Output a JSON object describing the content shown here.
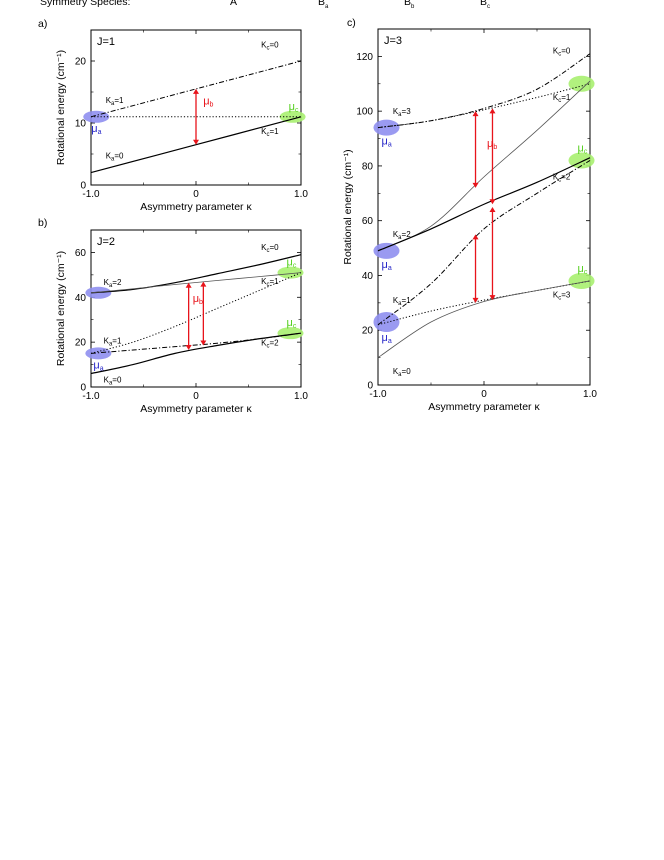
{
  "header": {
    "text": "Symmetry Species:",
    "species": [
      "A",
      "B",
      "B",
      "B"
    ],
    "species_subs": [
      "",
      "a",
      "b",
      "c"
    ]
  },
  "chart_data": [
    {
      "type": "line",
      "panel_label": "a)",
      "title": "J=1",
      "xlabel": "Asymmetry parameter κ",
      "ylabel": "Rotational energy (cm⁻¹)",
      "xlim": [
        -1.0,
        1.0
      ],
      "ylim": [
        0,
        25
      ],
      "xticks": [
        "-1.0",
        "0",
        "1.0"
      ],
      "yticks": [
        0,
        10,
        20
      ],
      "series": [
        {
          "name": "Ka=1,Kc=0",
          "style": "dashdot",
          "x": [
            -1.0,
            0,
            1.0
          ],
          "y": [
            11,
            15.5,
            20
          ]
        },
        {
          "name": "Ka=1,Kc=1",
          "style": "dotted",
          "x": [
            -1.0,
            0,
            1.0
          ],
          "y": [
            11,
            11,
            11
          ]
        },
        {
          "name": "Ka=0,Kc=1",
          "style": "solid",
          "x": [
            -1.0,
            0,
            1.0
          ],
          "y": [
            2,
            6.5,
            11
          ]
        }
      ],
      "transitions": [
        {
          "x": 0,
          "y1": 6.5,
          "y2": 15.5
        }
      ],
      "blobs": [
        {
          "color": "#8f8fef",
          "x": -0.95,
          "y": 11,
          "label": "μ",
          "sub": "a"
        },
        {
          "color": "#a8f070",
          "x": 0.92,
          "y": 11,
          "label": "μ",
          "sub": "c"
        }
      ],
      "mu_b_label": {
        "x": 0.04,
        "y": 13,
        "text": "μ",
        "sub": "b"
      },
      "level_labels": [
        {
          "text": "K",
          "sub": "a",
          "rest": "=1",
          "x": -0.86,
          "y": 13.2
        },
        {
          "text": "K",
          "sub": "a",
          "rest": "=0",
          "x": -0.86,
          "y": 4.3
        },
        {
          "text": "K",
          "sub": "c",
          "rest": "=0",
          "x": 0.62,
          "y": 22.2
        },
        {
          "text": "K",
          "sub": "c",
          "rest": "=1",
          "x": 0.62,
          "y": 8.2
        }
      ]
    },
    {
      "type": "line",
      "panel_label": "b)",
      "title": "J=2",
      "xlabel": "Asymmetry parameter κ",
      "ylabel": "Rotational energy (cm⁻¹)",
      "xlim": [
        -1.0,
        1.0
      ],
      "ylim": [
        0,
        70
      ],
      "xticks": [
        "-1.0",
        "0",
        "1.0"
      ],
      "yticks": [
        0,
        20,
        40,
        60
      ],
      "series": [
        {
          "name": "Ka=2,Kc=0",
          "style": "solid",
          "x": [
            -1.0,
            -0.6,
            -0.2,
            0.2,
            0.6,
            1.0
          ],
          "y": [
            42,
            43.5,
            46.5,
            50.5,
            54.5,
            59
          ]
        },
        {
          "name": "Ka=2,Kc=1",
          "style": "solid-thin",
          "x": [
            -1.0,
            -0.6,
            -0.2,
            0.2,
            0.6,
            1.0
          ],
          "y": [
            42,
            43.8,
            45.7,
            47.5,
            49.2,
            51
          ]
        },
        {
          "name": "Ka=1,Kc=1",
          "style": "dotted",
          "x": [
            -1.0,
            -0.6,
            -0.2,
            0.2,
            0.6,
            1.0
          ],
          "y": [
            15,
            20,
            27,
            35,
            43,
            51
          ]
        },
        {
          "name": "Ka=1,Kc=2",
          "style": "dashdot",
          "x": [
            -1.0,
            -0.6,
            -0.2,
            0.2,
            0.6,
            1.0
          ],
          "y": [
            15,
            16.5,
            18,
            19.5,
            21.5,
            24
          ]
        },
        {
          "name": "Ka=0,Kc=2",
          "style": "solid",
          "x": [
            -1.0,
            -0.6,
            -0.2,
            0.2,
            0.6,
            1.0
          ],
          "y": [
            6,
            10,
            15,
            18.5,
            21.5,
            24
          ]
        }
      ],
      "transitions": [
        {
          "x": -0.07,
          "y1": 16.5,
          "y2": 46.5
        },
        {
          "x": 0.07,
          "y1": 18.5,
          "y2": 47
        }
      ],
      "blobs": [
        {
          "color": "#8f8fef",
          "x": -0.93,
          "y": 42,
          "label": "",
          "sub": ""
        },
        {
          "color": "#8f8fef",
          "x": -0.93,
          "y": 15,
          "label": "μ",
          "sub": "a"
        },
        {
          "color": "#a8f070",
          "x": 0.9,
          "y": 51,
          "label": "μ",
          "sub": "c"
        },
        {
          "color": "#a8f070",
          "x": 0.9,
          "y": 24,
          "label": "μ",
          "sub": "c"
        }
      ],
      "mu_b_label": {
        "x": -0.06,
        "y": 38,
        "text": "μ",
        "sub": "b"
      },
      "level_labels": [
        {
          "text": "K",
          "sub": "a",
          "rest": "=2",
          "x": -0.88,
          "y": 45.5
        },
        {
          "text": "K",
          "sub": "a",
          "rest": "=1",
          "x": -0.88,
          "y": 19.5
        },
        {
          "text": "K",
          "sub": "a",
          "rest": "=0",
          "x": -0.88,
          "y": 2
        },
        {
          "text": "K",
          "sub": "c",
          "rest": "=0",
          "x": 0.62,
          "y": 61
        },
        {
          "text": "K",
          "sub": "c",
          "rest": "=1",
          "x": 0.62,
          "y": 46
        },
        {
          "text": "K",
          "sub": "c",
          "rest": "=2",
          "x": 0.62,
          "y": 18.5
        }
      ]
    },
    {
      "type": "line",
      "panel_label": "c)",
      "title": "J=3",
      "xlabel": "Asymmetry parameter κ",
      "ylabel": "Rotational energy (cm⁻¹)",
      "xlim": [
        -1.0,
        1.0
      ],
      "ylim": [
        0,
        130
      ],
      "xticks": [
        "-1.0",
        "0",
        "1.0"
      ],
      "yticks": [
        0,
        20,
        40,
        60,
        80,
        100,
        120
      ],
      "series": [
        {
          "name": "Ka=3,Kc=0",
          "style": "dashdot",
          "x": [
            -1.0,
            -0.5,
            0,
            0.5,
            1.0
          ],
          "y": [
            94,
            96.5,
            101,
            108,
            121
          ]
        },
        {
          "name": "Ka=3,Kc=1",
          "style": "dotted",
          "x": [
            -1.0,
            -0.5,
            0,
            0.5,
            1.0
          ],
          "y": [
            94,
            96.5,
            100.5,
            105,
            110
          ]
        },
        {
          "name": "Ka=2,Kc=1",
          "style": "solid-thin",
          "x": [
            -1.0,
            -0.5,
            0,
            0.5,
            1.0
          ],
          "y": [
            49,
            58,
            76,
            93,
            111
          ]
        },
        {
          "name": "Ka=2,Kc=2",
          "style": "solid",
          "x": [
            -1.0,
            -0.5,
            0,
            0.5,
            1.0
          ],
          "y": [
            49,
            57,
            66,
            74,
            83
          ]
        },
        {
          "name": "Ka=1,Kc=2",
          "style": "dashdot",
          "x": [
            -1.0,
            -0.5,
            0,
            0.5,
            1.0
          ],
          "y": [
            22,
            37,
            57,
            70,
            82
          ]
        },
        {
          "name": "Ka=1,Kc=3",
          "style": "dotted",
          "x": [
            -1.0,
            -0.5,
            0,
            0.5,
            1.0
          ],
          "y": [
            22,
            27,
            31,
            34.5,
            38
          ]
        },
        {
          "name": "Ka=0,Kc=3",
          "style": "solid-thin",
          "x": [
            -1.0,
            -0.5,
            0,
            0.5,
            1.0
          ],
          "y": [
            10,
            23,
            30.5,
            34.5,
            38
          ]
        }
      ],
      "transitions": [
        {
          "x": -0.08,
          "y1": 72,
          "y2": 100
        },
        {
          "x": 0.08,
          "y1": 66,
          "y2": 101
        },
        {
          "x": -0.08,
          "y1": 30,
          "y2": 55
        },
        {
          "x": 0.08,
          "y1": 31,
          "y2": 65
        }
      ],
      "blobs": [
        {
          "color": "#8f8fef",
          "x": -0.92,
          "y": 94,
          "label": "μ",
          "sub": "a"
        },
        {
          "color": "#8f8fef",
          "x": -0.92,
          "y": 49,
          "label": "μ",
          "sub": "a"
        },
        {
          "color": "#8f8fef",
          "x": -0.92,
          "y": 23,
          "label": "μ",
          "sub": "a"
        },
        {
          "color": "#a8f070",
          "x": 0.92,
          "y": 110,
          "label": "",
          "sub": ""
        },
        {
          "color": "#a8f070",
          "x": 0.92,
          "y": 82,
          "label": "μ",
          "sub": "c"
        },
        {
          "color": "#a8f070",
          "x": 0.92,
          "y": 38,
          "label": "μ",
          "sub": "c"
        }
      ],
      "mu_b_label": {
        "x": 0.0,
        "y": 87,
        "text": "μ",
        "sub": "b"
      },
      "level_labels": [
        {
          "text": "K",
          "sub": "a",
          "rest": "=3",
          "x": -0.86,
          "y": 99
        },
        {
          "text": "K",
          "sub": "a",
          "rest": "=2",
          "x": -0.86,
          "y": 54
        },
        {
          "text": "K",
          "sub": "a",
          "rest": "=1",
          "x": -0.86,
          "y": 30
        },
        {
          "text": "K",
          "sub": "a",
          "rest": "=0",
          "x": -0.86,
          "y": 4
        },
        {
          "text": "K",
          "sub": "c",
          "rest": "=0",
          "x": 0.65,
          "y": 121
        },
        {
          "text": "K",
          "sub": "c",
          "rest": "=1",
          "x": 0.65,
          "y": 104
        },
        {
          "text": "K",
          "sub": "c",
          "rest": "=2",
          "x": 0.65,
          "y": 75
        },
        {
          "text": "K",
          "sub": "c",
          "rest": "=3",
          "x": 0.65,
          "y": 32
        }
      ]
    }
  ]
}
